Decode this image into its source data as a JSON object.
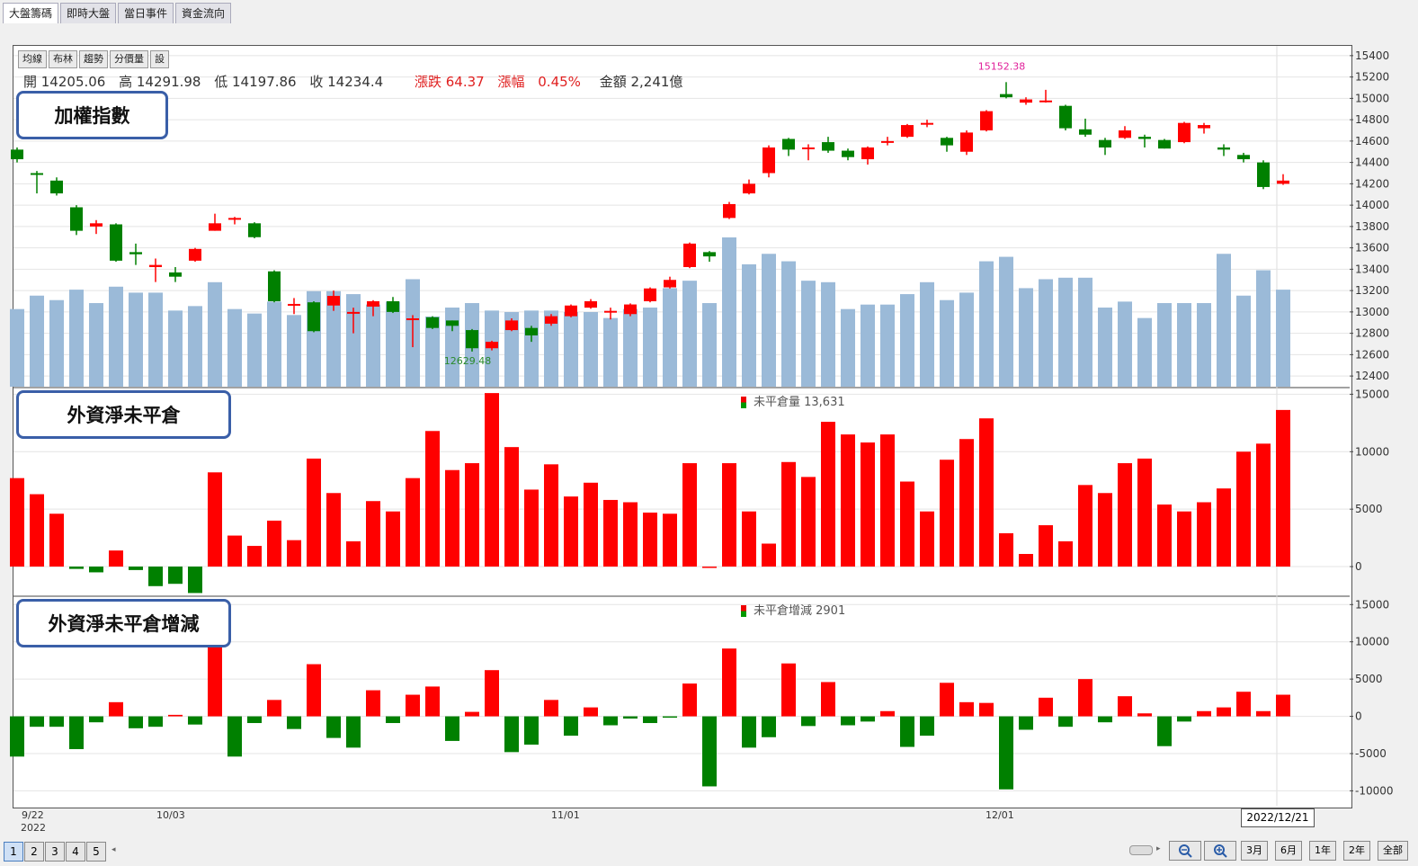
{
  "tabs": [
    "大盤籌碼",
    "即時大盤",
    "當日事件",
    "資金流向"
  ],
  "toolbar_buttons": [
    "均線",
    "布林",
    "趨勢",
    "分價量",
    "設"
  ],
  "ohlc": {
    "open": "開 14205.06",
    "high": "高 14291.98",
    "low": "低 14197.86",
    "close": "收 14234.4",
    "change": "漲跌 64.37",
    "change_pct_label": "漲幅",
    "change_pct": "0.45%",
    "amount": "金額 2,241億"
  },
  "panels": {
    "top_label": "加權指數",
    "middle_label": "外資淨未平倉",
    "bottom_label": "外資淨未平倉增減"
  },
  "legends": {
    "middle": "未平倉量 13,631",
    "bottom": "未平倉增減 2901"
  },
  "x_labels": {
    "first_date": "9/22",
    "first_year": "2022",
    "oct": "10/03",
    "nov": "11/01",
    "dec": "12/01",
    "current": "2022/12/21"
  },
  "pagination": [
    "1",
    "2",
    "3",
    "4",
    "5"
  ],
  "range_buttons": [
    "3月",
    "6月",
    "1年",
    "2年",
    "全部"
  ],
  "colors": {
    "up": "#ff0000",
    "down": "#008000",
    "volume": "#9bbad8",
    "frame": "#555555"
  },
  "chart_data": [
    {
      "type": "candlestick",
      "title": "加權指數",
      "y_ticks": [
        12400,
        12600,
        12800,
        13000,
        13200,
        13400,
        13600,
        13800,
        14000,
        14200,
        14400,
        14600,
        14800,
        15000,
        15200,
        15400
      ],
      "ylim": [
        12300,
        15500
      ],
      "annotations": [
        {
          "text": "15152.38",
          "index": 50
        },
        {
          "text": "12629.48",
          "index": 23
        }
      ],
      "candles": [
        {
          "o": 14520,
          "c": 14430,
          "h": 14540,
          "l": 14400
        },
        {
          "o": 14300,
          "c": 14285,
          "h": 14320,
          "l": 14110
        },
        {
          "o": 14230,
          "c": 14110,
          "h": 14260,
          "l": 14090
        },
        {
          "o": 13980,
          "c": 13760,
          "h": 14000,
          "l": 13720
        },
        {
          "o": 13800,
          "c": 13830,
          "h": 13860,
          "l": 13730
        },
        {
          "o": 13820,
          "c": 13480,
          "h": 13830,
          "l": 13470
        },
        {
          "o": 13560,
          "c": 13540,
          "h": 13640,
          "l": 13440
        },
        {
          "o": 13420,
          "c": 13440,
          "h": 13500,
          "l": 13280
        },
        {
          "o": 13370,
          "c": 13330,
          "h": 13420,
          "l": 13280
        },
        {
          "o": 13480,
          "c": 13590,
          "h": 13600,
          "l": 13470
        },
        {
          "o": 13760,
          "c": 13830,
          "h": 13920,
          "l": 13760
        },
        {
          "o": 13870,
          "c": 13880,
          "h": 13890,
          "l": 13820
        },
        {
          "o": 13830,
          "c": 13700,
          "h": 13840,
          "l": 13690
        },
        {
          "o": 13380,
          "c": 13100,
          "h": 13390,
          "l": 13090
        },
        {
          "o": 13060,
          "c": 13075,
          "h": 13130,
          "l": 12980
        },
        {
          "o": 13090,
          "c": 12820,
          "h": 13100,
          "l": 12810
        },
        {
          "o": 13060,
          "c": 13150,
          "h": 13200,
          "l": 13010
        },
        {
          "o": 12990,
          "c": 13000,
          "h": 13040,
          "l": 12800
        },
        {
          "o": 13050,
          "c": 13100,
          "h": 13110,
          "l": 12960
        },
        {
          "o": 13100,
          "c": 13000,
          "h": 13140,
          "l": 12990
        },
        {
          "o": 12930,
          "c": 12940,
          "h": 12970,
          "l": 12670
        },
        {
          "o": 12950,
          "c": 12850,
          "h": 12960,
          "l": 12840
        },
        {
          "o": 12920,
          "c": 12870,
          "h": 12920,
          "l": 12820
        },
        {
          "o": 12830,
          "c": 12660,
          "h": 12840,
          "l": 12629
        },
        {
          "o": 12660,
          "c": 12720,
          "h": 12730,
          "l": 12640
        },
        {
          "o": 12830,
          "c": 12920,
          "h": 12940,
          "l": 12820
        },
        {
          "o": 12850,
          "c": 12780,
          "h": 12870,
          "l": 12720
        },
        {
          "o": 12890,
          "c": 12960,
          "h": 12980,
          "l": 12870
        },
        {
          "o": 12960,
          "c": 13060,
          "h": 13070,
          "l": 12950
        },
        {
          "o": 13040,
          "c": 13100,
          "h": 13120,
          "l": 13030
        },
        {
          "o": 13000,
          "c": 13010,
          "h": 13040,
          "l": 12930
        },
        {
          "o": 12980,
          "c": 13070,
          "h": 13080,
          "l": 12960
        },
        {
          "o": 13100,
          "c": 13220,
          "h": 13230,
          "l": 13090
        },
        {
          "o": 13230,
          "c": 13300,
          "h": 13330,
          "l": 13220
        },
        {
          "o": 13420,
          "c": 13640,
          "h": 13650,
          "l": 13410
        },
        {
          "o": 13560,
          "c": 13520,
          "h": 13570,
          "l": 13470
        },
        {
          "o": 13880,
          "c": 14010,
          "h": 14030,
          "l": 13870
        },
        {
          "o": 14110,
          "c": 14200,
          "h": 14240,
          "l": 14100
        },
        {
          "o": 14300,
          "c": 14540,
          "h": 14560,
          "l": 14260
        },
        {
          "o": 14620,
          "c": 14520,
          "h": 14630,
          "l": 14460
        },
        {
          "o": 14530,
          "c": 14540,
          "h": 14570,
          "l": 14420
        },
        {
          "o": 14590,
          "c": 14510,
          "h": 14640,
          "l": 14490
        },
        {
          "o": 14510,
          "c": 14450,
          "h": 14530,
          "l": 14420
        },
        {
          "o": 14430,
          "c": 14540,
          "h": 14550,
          "l": 14380
        },
        {
          "o": 14590,
          "c": 14600,
          "h": 14640,
          "l": 14560
        },
        {
          "o": 14640,
          "c": 14750,
          "h": 14760,
          "l": 14630
        },
        {
          "o": 14760,
          "c": 14770,
          "h": 14800,
          "l": 14730
        },
        {
          "o": 14630,
          "c": 14560,
          "h": 14640,
          "l": 14500
        },
        {
          "o": 14500,
          "c": 14680,
          "h": 14700,
          "l": 14470
        },
        {
          "o": 14700,
          "c": 14880,
          "h": 14890,
          "l": 14690
        },
        {
          "o": 15040,
          "c": 15010,
          "h": 15152,
          "l": 15000
        },
        {
          "o": 14960,
          "c": 14990,
          "h": 15010,
          "l": 14940
        },
        {
          "o": 14970,
          "c": 14980,
          "h": 15080,
          "l": 14960
        },
        {
          "o": 14930,
          "c": 14720,
          "h": 14940,
          "l": 14700
        },
        {
          "o": 14710,
          "c": 14660,
          "h": 14810,
          "l": 14640
        },
        {
          "o": 14610,
          "c": 14540,
          "h": 14630,
          "l": 14470
        },
        {
          "o": 14630,
          "c": 14700,
          "h": 14740,
          "l": 14620
        },
        {
          "o": 14640,
          "c": 14620,
          "h": 14660,
          "l": 14540
        },
        {
          "o": 14610,
          "c": 14530,
          "h": 14620,
          "l": 14530
        },
        {
          "o": 14590,
          "c": 14770,
          "h": 14780,
          "l": 14580
        },
        {
          "o": 14720,
          "c": 14750,
          "h": 14770,
          "l": 14670
        },
        {
          "o": 14540,
          "c": 14520,
          "h": 14570,
          "l": 14460
        },
        {
          "o": 14470,
          "c": 14430,
          "h": 14490,
          "l": 14400
        },
        {
          "o": 14400,
          "c": 14170,
          "h": 14420,
          "l": 14150
        },
        {
          "o": 14200,
          "c": 14230,
          "h": 14290,
          "l": 14190
        }
      ],
      "volume_relative": [
        0.52,
        0.61,
        0.58,
        0.65,
        0.56,
        0.67,
        0.63,
        0.63,
        0.51,
        0.54,
        0.7,
        0.52,
        0.49,
        0.57,
        0.48,
        0.64,
        0.64,
        0.62,
        0.55,
        0.57,
        0.72,
        0.47,
        0.53,
        0.56,
        0.51,
        0.5,
        0.51,
        0.51,
        0.5,
        0.5,
        0.46,
        0.52,
        0.53,
        0.66,
        0.71,
        0.56,
        1.0,
        0.82,
        0.89,
        0.84,
        0.71,
        0.7,
        0.52,
        0.55,
        0.55,
        0.62,
        0.7,
        0.58,
        0.63,
        0.84,
        0.87,
        0.66,
        0.72,
        0.73,
        0.73,
        0.53,
        0.57,
        0.46,
        0.56,
        0.56,
        0.56,
        0.89,
        0.61,
        0.78,
        0.65
      ]
    },
    {
      "type": "bar",
      "title": "外資淨未平倉",
      "y_ticks": [
        0,
        5000,
        10000,
        15000
      ],
      "ylim": [
        -2500,
        15500
      ],
      "values": [
        7700,
        6300,
        4600,
        -200,
        -500,
        1400,
        -300,
        -1700,
        -1500,
        -2300,
        8200,
        2700,
        1800,
        4000,
        2300,
        9400,
        6400,
        2200,
        5700,
        4800,
        7700,
        11800,
        8400,
        9000,
        15100,
        10400,
        6700,
        8900,
        6100,
        7300,
        5800,
        5600,
        4700,
        4600,
        9000,
        0,
        9000,
        4800,
        2000,
        9100,
        7800,
        12600,
        11500,
        10800,
        11500,
        7400,
        4800,
        9300,
        11100,
        12900,
        2900,
        1100,
        3600,
        2200,
        7100,
        6400,
        9000,
        9400,
        5400,
        4800,
        5600,
        6800,
        10000,
        10700,
        13631
      ]
    },
    {
      "type": "bar",
      "title": "外資淨未平倉增減",
      "y_ticks": [
        -10000,
        -5000,
        0,
        5000,
        10000,
        15000
      ],
      "ylim": [
        -12000,
        16000
      ],
      "values": [
        -5400,
        -1400,
        -1400,
        -4400,
        -800,
        1900,
        -1600,
        -1400,
        200,
        -1100,
        10000,
        -5400,
        -900,
        2200,
        -1700,
        7000,
        -2900,
        -4200,
        3500,
        -900,
        2900,
        4000,
        -3300,
        600,
        6200,
        -4800,
        -3800,
        2200,
        -2600,
        1200,
        -1200,
        -300,
        -900,
        -100,
        4400,
        -9400,
        9100,
        -4200,
        -2800,
        7100,
        -1300,
        4600,
        -1200,
        -700,
        700,
        -4100,
        -2600,
        4500,
        1900,
        1800,
        -9800,
        -1800,
        2500,
        -1400,
        5000,
        -800,
        2700,
        400,
        -4000,
        -700,
        700,
        1200,
        3300,
        700,
        2901
      ]
    }
  ]
}
